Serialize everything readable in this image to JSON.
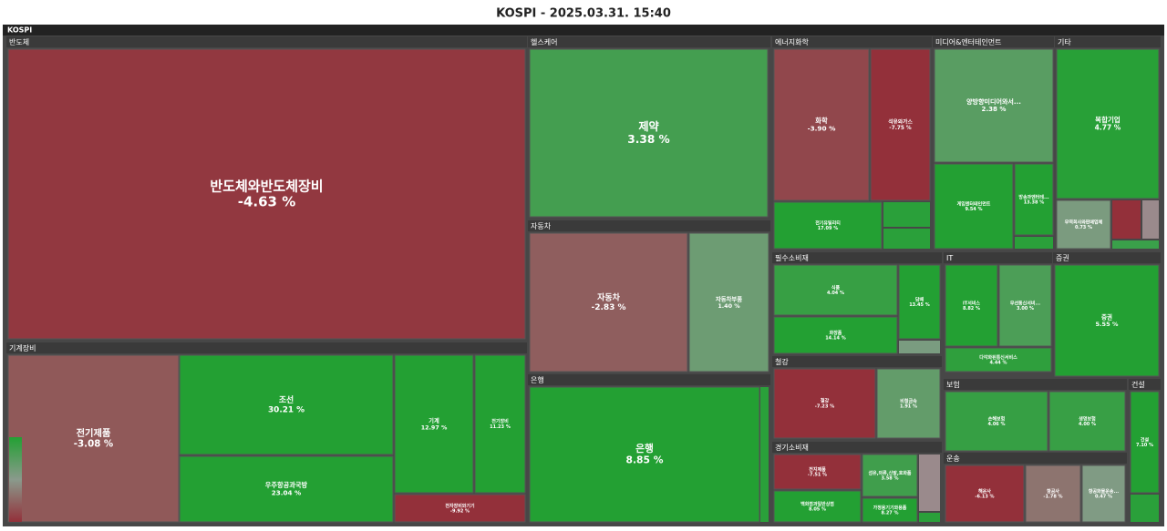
{
  "chart_data": {
    "type": "treemap",
    "title": "KOSPI - 2025.03.31. 15:40",
    "root": "KOSPI",
    "groups": [
      {
        "name": "반도체",
        "tiles": [
          {
            "name": "반도체와반도체장비",
            "value": -4.63,
            "value_label": "-4.63 %"
          }
        ]
      },
      {
        "name": "기계장비",
        "tiles": [
          {
            "name": "전기제품",
            "value": -3.08,
            "value_label": "-3.08 %"
          },
          {
            "name": "조선",
            "value": 30.21,
            "value_label": "30.21 %"
          },
          {
            "name": "우주항공과국방",
            "value": 23.04,
            "value_label": "23.04 %"
          },
          {
            "name": "기계",
            "value": 12.97,
            "value_label": "12.97 %"
          },
          {
            "name": "전기장비",
            "value": 11.23,
            "value_label": "11.23 %"
          },
          {
            "name": "전자장비와기기",
            "value": -9.92,
            "value_label": "-9.92 %"
          }
        ]
      },
      {
        "name": "헬스케어",
        "tiles": [
          {
            "name": "제약",
            "value": 3.38,
            "value_label": "3.38 %"
          }
        ]
      },
      {
        "name": "자동차",
        "tiles": [
          {
            "name": "자동차",
            "value": -2.83,
            "value_label": "-2.83 %"
          },
          {
            "name": "자동차부품",
            "value": 1.4,
            "value_label": "1.40 %"
          }
        ]
      },
      {
        "name": "은행",
        "tiles": [
          {
            "name": "은행",
            "value": 8.85,
            "value_label": "8.85 %"
          }
        ]
      },
      {
        "name": "에너지화학",
        "tiles": [
          {
            "name": "화학",
            "value": -3.9,
            "value_label": "-3.90 %"
          },
          {
            "name": "석유와가스",
            "value": -7.75,
            "value_label": "-7.75 %"
          },
          {
            "name": "전기유틸리티",
            "value": 17.09,
            "value_label": "17.09 %"
          }
        ]
      },
      {
        "name": "미디어&엔터테인먼트",
        "tiles": [
          {
            "name": "양방향미디어와서...",
            "value": 2.38,
            "value_label": "2.38 %"
          },
          {
            "name": "게임엔터테인먼트",
            "value": 9.54,
            "value_label": "9.54 %"
          },
          {
            "name": "방송과엔터테...",
            "value": 13.38,
            "value_label": "13.38 %"
          }
        ]
      },
      {
        "name": "기타",
        "tiles": [
          {
            "name": "복합기업",
            "value": 4.77,
            "value_label": "4.77 %"
          },
          {
            "name": "무역회사와판매업체",
            "value": 0.73,
            "value_label": "0.73 %"
          }
        ]
      },
      {
        "name": "필수소비재",
        "tiles": [
          {
            "name": "식품",
            "value": 4.04,
            "value_label": "4.04 %"
          },
          {
            "name": "화장품",
            "value": 14.14,
            "value_label": "14.14 %"
          },
          {
            "name": "담배",
            "value": 13.45,
            "value_label": "13.45 %"
          }
        ]
      },
      {
        "name": "IT",
        "tiles": [
          {
            "name": "IT서비스",
            "value": 8.82,
            "value_label": "8.82 %"
          },
          {
            "name": "무선통신서비...",
            "value": 3.0,
            "value_label": "3.00 %"
          },
          {
            "name": "다각화된통신서비스",
            "value": 4.44,
            "value_label": "4.44 %"
          }
        ]
      },
      {
        "name": "증권",
        "tiles": [
          {
            "name": "증권",
            "value": 5.55,
            "value_label": "5.55 %"
          }
        ]
      },
      {
        "name": "철강",
        "tiles": [
          {
            "name": "철강",
            "value": -7.23,
            "value_label": "-7.23 %"
          },
          {
            "name": "비철금속",
            "value": 1.91,
            "value_label": "1.91 %"
          }
        ]
      },
      {
        "name": "경기소비재",
        "tiles": [
          {
            "name": "전지제품",
            "value": -7.51,
            "value_label": "-7.51 %"
          },
          {
            "name": "백화점과일반상점",
            "value": 8.05,
            "value_label": "8.05 %"
          },
          {
            "name": "섬유,의류,신발,호화품",
            "value": 3.58,
            "value_label": "3.58 %"
          },
          {
            "name": "가정용기기와용품",
            "value": 8.27,
            "value_label": "8.27 %"
          }
        ]
      },
      {
        "name": "보험",
        "tiles": [
          {
            "name": "손해보험",
            "value": 4.06,
            "value_label": "4.06 %"
          },
          {
            "name": "생명보험",
            "value": 4.0,
            "value_label": "4.00 %"
          }
        ]
      },
      {
        "name": "운송",
        "tiles": [
          {
            "name": "해운사",
            "value": -6.13,
            "value_label": "-6.13 %"
          },
          {
            "name": "항공사",
            "value": -1.78,
            "value_label": "-1.78 %"
          },
          {
            "name": "항공화물운송...",
            "value": 0.47,
            "value_label": "0.47 %"
          }
        ]
      },
      {
        "name": "건설",
        "tiles": [
          {
            "name": "건설",
            "value": 7.1,
            "value_label": "7.10 %"
          }
        ]
      }
    ]
  }
}
